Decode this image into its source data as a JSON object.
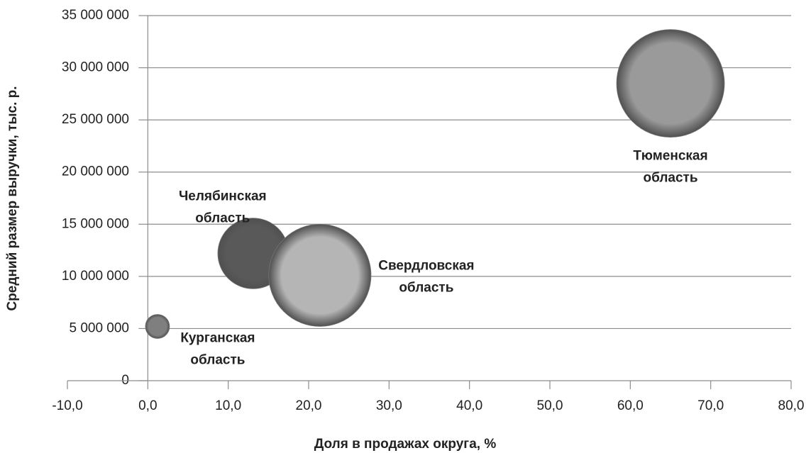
{
  "chart_data": {
    "type": "bubble",
    "xlabel": "Доля в продажах округа, %",
    "ylabel": "Средний размер выручки, тыс. р.",
    "xlim": [
      -10,
      80
    ],
    "xticks": [
      {
        "value": -10,
        "label": "-10,0"
      },
      {
        "value": 0,
        "label": "0,0"
      },
      {
        "value": 10,
        "label": "10,0"
      },
      {
        "value": 20,
        "label": "20,0"
      },
      {
        "value": 30,
        "label": "30,0"
      },
      {
        "value": 40,
        "label": "40,0"
      },
      {
        "value": 50,
        "label": "50,0"
      },
      {
        "value": 60,
        "label": "60,0"
      },
      {
        "value": 70,
        "label": "70,0"
      },
      {
        "value": 80,
        "label": "80,0"
      }
    ],
    "ylim": [
      0,
      35000000
    ],
    "yticks": [
      0,
      {
        "value": 5000000,
        "label": "5 000 000"
      },
      {
        "value": 10000000,
        "label": "10 000 000"
      },
      {
        "value": 15000000,
        "label": "15 000 000"
      },
      {
        "value": 20000000,
        "label": "20 000 000"
      },
      {
        "value": 25000000,
        "label": "25 000 000"
      },
      {
        "value": 30000000,
        "label": "30 000 000"
      },
      {
        "value": 35000000,
        "label": "35 000 000"
      }
    ],
    "grid": true,
    "points": [
      {
        "label": [
          "Курганская",
          "область"
        ],
        "x": 1.2,
        "y": 5200000,
        "size": 5,
        "color": "#7f7f7f"
      },
      {
        "label": [
          "Челябинская",
          "область"
        ],
        "x": 13.1,
        "y": 12200000,
        "size": 43,
        "color": "#595959"
      },
      {
        "label": [
          "Свердловская",
          "область"
        ],
        "x": 21.4,
        "y": 10100000,
        "size": 90,
        "color": "#b5b5b5"
      },
      {
        "label": [
          "Тюменская",
          "область"
        ],
        "x": 65,
        "y": 28500000,
        "size": 100,
        "color": "#9a9a9a"
      }
    ]
  }
}
